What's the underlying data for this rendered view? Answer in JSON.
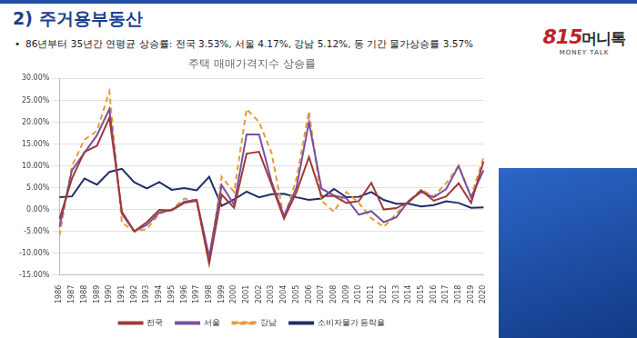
{
  "header": {
    "title": "2) 주거용부동산",
    "bullet": "86년부터 35년간 연평균 상승률: 전국 3.53%, 서울 4.17%, 강남 5.12%, 동 기간 물가상승률 3.57%",
    "logo_number": "815",
    "logo_text": "머니톡",
    "logo_sub": "MONEY TALK"
  },
  "chart_data": {
    "type": "line",
    "title": "주택 매매가격지수 상승률",
    "categories": [
      "1986",
      "1987",
      "1988",
      "1989",
      "1990",
      "1991",
      "1992",
      "1993",
      "1994",
      "1995",
      "1996",
      "1997",
      "1998",
      "1999",
      "2000",
      "2001",
      "2002",
      "2003",
      "2004",
      "2005",
      "2006",
      "2007",
      "2008",
      "2009",
      "2010",
      "2011",
      "2012",
      "2013",
      "2014",
      "2015",
      "2016",
      "2017",
      "2018",
      "2019",
      "2020"
    ],
    "series": [
      {
        "name": "전국",
        "color": "#a03a3a",
        "line_style": "solid",
        "values": [
          -2.2,
          7.1,
          13.2,
          14.6,
          21.0,
          -0.5,
          -5.0,
          -2.9,
          -0.1,
          -0.2,
          1.5,
          2.0,
          -12.4,
          3.4,
          0.4,
          12.8,
          13.2,
          5.7,
          -2.1,
          4.0,
          12.0,
          3.1,
          3.1,
          1.5,
          1.9,
          6.1,
          0.0,
          0.3,
          1.7,
          4.4,
          2.0,
          3.0,
          6.0,
          1.5,
          11.0
        ]
      },
      {
        "name": "서울",
        "color": "#7b4fa0",
        "line_style": "solid",
        "values": [
          -4.0,
          9.0,
          13.0,
          17.0,
          23.0,
          -1.0,
          -5.0,
          -3.5,
          -0.7,
          -0.1,
          1.8,
          2.2,
          -10.8,
          5.6,
          1.1,
          17.2,
          17.2,
          6.4,
          -1.5,
          5.0,
          20.0,
          4.8,
          3.2,
          2.6,
          -1.2,
          -0.4,
          -2.9,
          -1.8,
          2.0,
          4.0,
          2.8,
          4.7,
          10.0,
          2.8,
          9.0
        ]
      },
      {
        "name": "강남",
        "color": "#e49b3a",
        "line_style": "dashed",
        "values": [
          -6.0,
          10.0,
          16.0,
          18.0,
          27.0,
          -3.0,
          -5.0,
          -4.5,
          -1.0,
          0.0,
          2.5,
          2.0,
          -12.5,
          7.5,
          4.0,
          23.0,
          20.0,
          13.0,
          -2.0,
          7.0,
          22.5,
          2.0,
          -0.5,
          4.0,
          1.5,
          -2.0,
          -4.0,
          -1.0,
          2.0,
          4.5,
          3.0,
          6.0,
          10.0,
          3.0,
          12.0
        ]
      },
      {
        "name": "소비자물가 등락율",
        "color": "#1f2d6b",
        "line_style": "solid",
        "values": [
          2.8,
          3.0,
          7.1,
          5.7,
          8.6,
          9.3,
          6.2,
          4.8,
          6.3,
          4.5,
          4.9,
          4.4,
          7.5,
          0.8,
          2.3,
          4.1,
          2.8,
          3.5,
          3.6,
          2.8,
          2.2,
          2.5,
          4.7,
          2.8,
          2.9,
          4.0,
          2.2,
          1.3,
          1.3,
          0.7,
          1.0,
          1.9,
          1.5,
          0.4,
          0.5
        ]
      }
    ],
    "ylim": [
      -15,
      30
    ],
    "yticks": [
      {
        "value": -15,
        "label": "-15.00%"
      },
      {
        "value": -10,
        "label": "-10.00%"
      },
      {
        "value": -5,
        "label": "-5.00%"
      },
      {
        "value": 0,
        "label": "0.00%"
      },
      {
        "value": 5,
        "label": "5.00%"
      },
      {
        "value": 10,
        "label": "10.00%"
      },
      {
        "value": 15,
        "label": "15.00%"
      },
      {
        "value": 20,
        "label": "20.00%"
      },
      {
        "value": 25,
        "label": "25.00%"
      },
      {
        "value": 30,
        "label": "30.00%"
      }
    ],
    "grid": true,
    "legend": "bottom"
  }
}
